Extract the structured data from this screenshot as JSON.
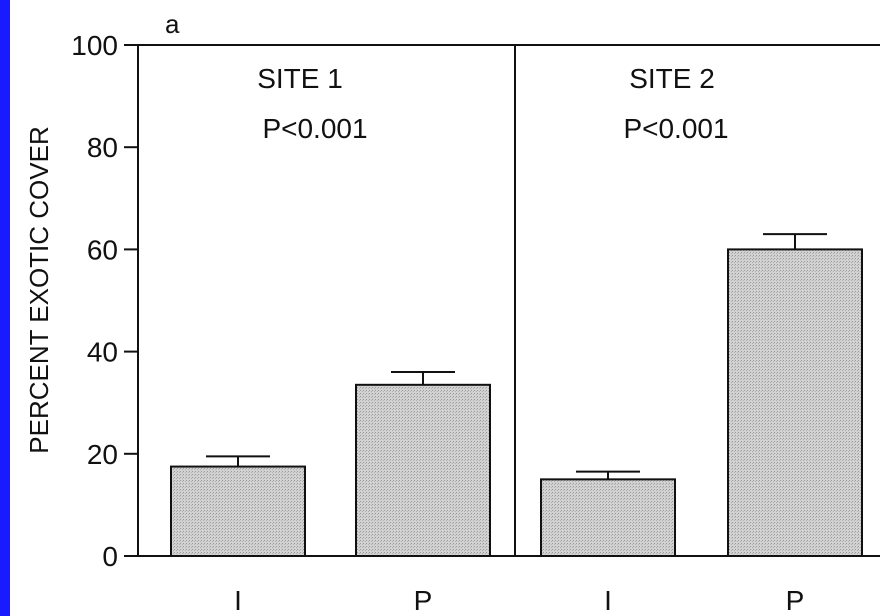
{
  "frame": {
    "accent_color": "#1a1aff"
  },
  "chart_data": {
    "type": "bar",
    "panel_label": "a",
    "ylabel": "PERCENT EXOTIC COVER",
    "xlabel": "",
    "ylim": [
      0,
      100
    ],
    "yticks": [
      0,
      20,
      40,
      60,
      80,
      100
    ],
    "grid": false,
    "legend": "none",
    "bar_color": "#cfcfcf",
    "groups": [
      {
        "title": "SITE 1",
        "p_value": "P<0.001",
        "categories": [
          "I",
          "P"
        ],
        "values": [
          17.5,
          33.5
        ],
        "errors": [
          2.0,
          2.5
        ]
      },
      {
        "title": "SITE 2",
        "p_value": "P<0.001",
        "categories": [
          "I",
          "P"
        ],
        "values": [
          15,
          60
        ],
        "errors": [
          1.5,
          3.0
        ]
      }
    ]
  }
}
